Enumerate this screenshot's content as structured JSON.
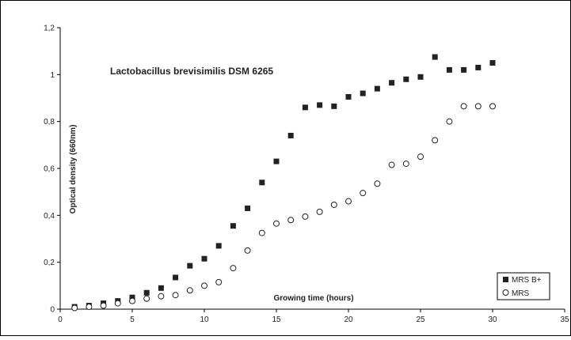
{
  "chart_data": {
    "type": "scatter",
    "title": "Lactobacillus brevisimilis DSM 6265",
    "xlabel": "Growing time (hours)",
    "ylabel": "Optical density (660nm)",
    "xlim": [
      0,
      35
    ],
    "ylim": [
      0,
      1.2
    ],
    "x_ticks": [
      "0",
      "5",
      "10",
      "15",
      "20",
      "25",
      "30",
      "35"
    ],
    "y_ticks": [
      "0",
      "0,2",
      "0,4",
      "0,6",
      "0,8",
      "1",
      "1,2"
    ],
    "grid": false,
    "legend_position": "bottom-right",
    "series": [
      {
        "name": "MRS B+",
        "marker": "filled-square",
        "color": "#222222",
        "x": [
          1,
          2,
          3,
          4,
          5,
          6,
          7,
          8,
          9,
          10,
          11,
          12,
          13,
          14,
          15,
          16,
          17,
          18,
          19,
          20,
          21,
          22,
          23,
          24,
          25,
          26,
          27,
          28,
          29,
          30
        ],
        "values": [
          0.01,
          0.015,
          0.025,
          0.035,
          0.05,
          0.07,
          0.09,
          0.135,
          0.185,
          0.215,
          0.27,
          0.355,
          0.43,
          0.54,
          0.63,
          0.74,
          0.86,
          0.87,
          0.865,
          0.905,
          0.92,
          0.94,
          0.965,
          0.98,
          0.99,
          1.075,
          1.02,
          1.02,
          1.03,
          1.05
        ]
      },
      {
        "name": "MRS",
        "marker": "open-circle",
        "color": "#222222",
        "x": [
          1,
          2,
          3,
          4,
          5,
          6,
          7,
          8,
          9,
          10,
          11,
          12,
          13,
          14,
          15,
          16,
          17,
          18,
          19,
          20,
          21,
          22,
          23,
          24,
          25,
          26,
          27,
          28,
          29,
          30
        ],
        "values": [
          0.005,
          0.01,
          0.015,
          0.025,
          0.035,
          0.045,
          0.055,
          0.06,
          0.08,
          0.1,
          0.115,
          0.175,
          0.25,
          0.325,
          0.365,
          0.38,
          0.395,
          0.415,
          0.445,
          0.46,
          0.495,
          0.535,
          0.615,
          0.62,
          0.65,
          0.72,
          0.8,
          0.865,
          0.865,
          0.865
        ]
      }
    ]
  }
}
